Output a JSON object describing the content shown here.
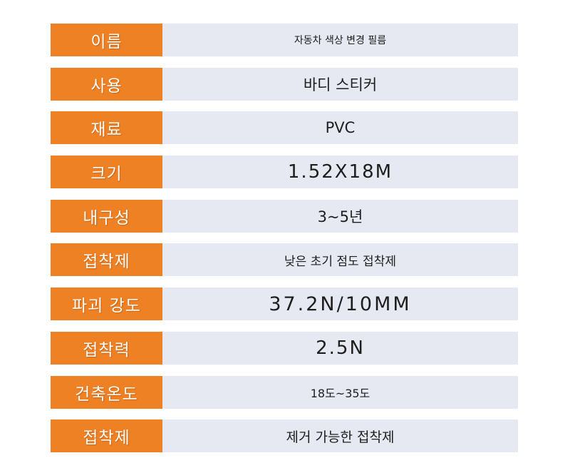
{
  "specs": [
    {
      "label": "이름",
      "value": "자동차 색상 변경 필름"
    },
    {
      "label": "사용",
      "value": "바디 스티커"
    },
    {
      "label": "재료",
      "value": "PVC"
    },
    {
      "label": "크기",
      "value": "1.52X18M"
    },
    {
      "label": "내구성",
      "value": "3~5년"
    },
    {
      "label": "접착제",
      "value": "낮은 초기 점도 접착제"
    },
    {
      "label": "파괴 강도",
      "value": "37.2N/10MM"
    },
    {
      "label": "접착력",
      "value": "2.5N"
    },
    {
      "label": "건축온도",
      "value": "18도~35도"
    },
    {
      "label": "접착제",
      "value": "제거 가능한 접착제"
    }
  ],
  "colors": {
    "label_bg": "#ee8124",
    "value_bg": "#e6e9f2",
    "label_text": "#ffffff",
    "value_text": "#1e1e1e"
  }
}
